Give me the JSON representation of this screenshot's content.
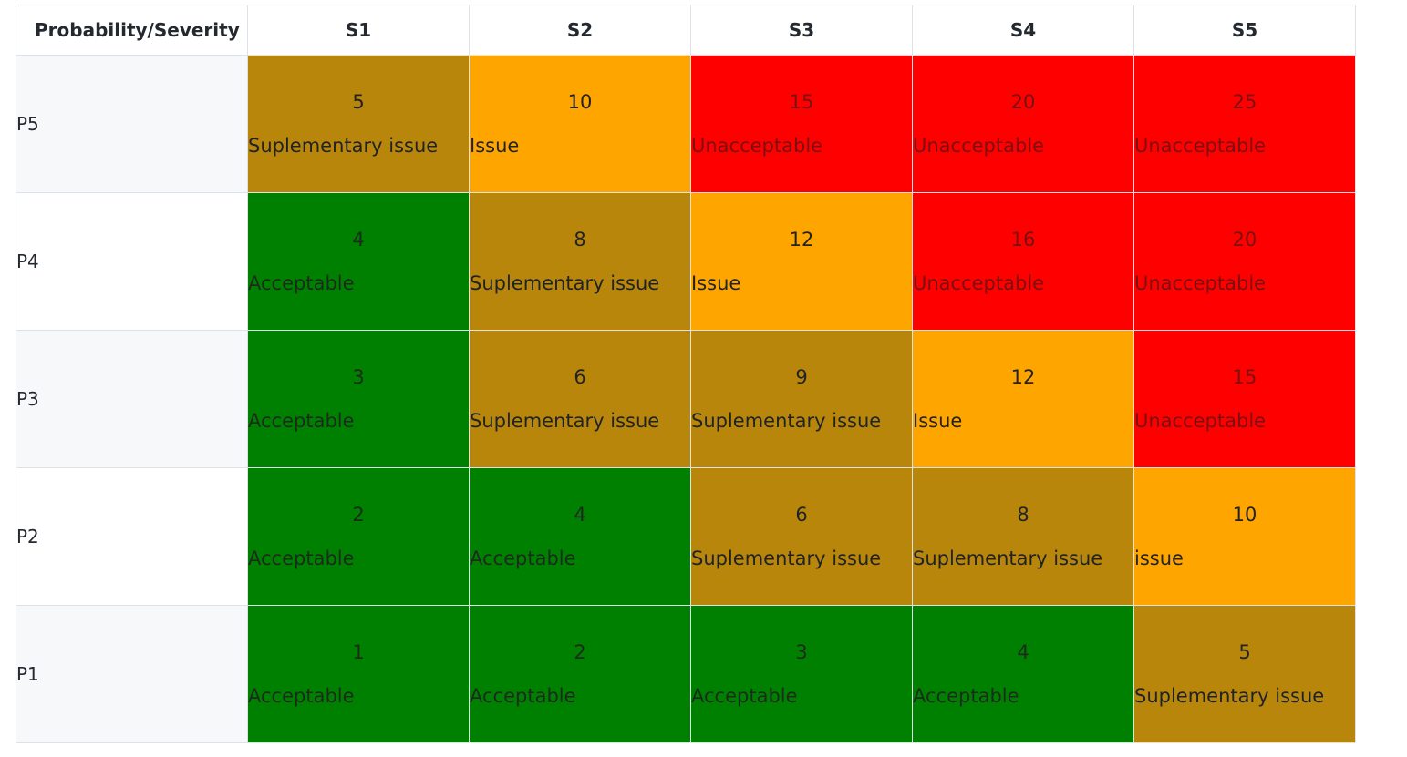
{
  "header": {
    "corner": "Probability/Severity",
    "columns": [
      "S1",
      "S2",
      "S3",
      "S4",
      "S5"
    ]
  },
  "rows": [
    {
      "label": "P5",
      "cells": [
        {
          "score": "5",
          "text": "Suplementary issue",
          "level": "suplementary"
        },
        {
          "score": "10",
          "text": "Issue",
          "level": "issue"
        },
        {
          "score": "15",
          "text": "Unacceptable",
          "level": "unacceptable"
        },
        {
          "score": "20",
          "text": "Unacceptable",
          "level": "unacceptable"
        },
        {
          "score": "25",
          "text": "Unacceptable",
          "level": "unacceptable"
        }
      ]
    },
    {
      "label": "P4",
      "cells": [
        {
          "score": "4",
          "text": "Acceptable",
          "level": "acceptable"
        },
        {
          "score": "8",
          "text": "Suplementary issue",
          "level": "suplementary"
        },
        {
          "score": "12",
          "text": "Issue",
          "level": "issue"
        },
        {
          "score": "16",
          "text": "Unacceptable",
          "level": "unacceptable"
        },
        {
          "score": "20",
          "text": "Unacceptable",
          "level": "unacceptable"
        }
      ]
    },
    {
      "label": "P3",
      "cells": [
        {
          "score": "3",
          "text": "Acceptable",
          "level": "acceptable"
        },
        {
          "score": "6",
          "text": "Suplementary issue",
          "level": "suplementary"
        },
        {
          "score": "9",
          "text": "Suplementary issue",
          "level": "suplementary"
        },
        {
          "score": "12",
          "text": "Issue",
          "level": "issue"
        },
        {
          "score": "15",
          "text": "Unacceptable",
          "level": "unacceptable"
        }
      ]
    },
    {
      "label": "P2",
      "cells": [
        {
          "score": "2",
          "text": "Acceptable",
          "level": "acceptable"
        },
        {
          "score": "4",
          "text": "Acceptable",
          "level": "acceptable"
        },
        {
          "score": "6",
          "text": "Suplementary issue",
          "level": "suplementary"
        },
        {
          "score": "8",
          "text": "Suplementary issue",
          "level": "suplementary"
        },
        {
          "score": "10",
          "text": "issue",
          "level": "issue"
        }
      ]
    },
    {
      "label": "P1",
      "cells": [
        {
          "score": "1",
          "text": "Acceptable",
          "level": "acceptable"
        },
        {
          "score": "2",
          "text": "Acceptable",
          "level": "acceptable"
        },
        {
          "score": "3",
          "text": "Acceptable",
          "level": "acceptable"
        },
        {
          "score": "4",
          "text": "Acceptable",
          "level": "acceptable"
        },
        {
          "score": "5",
          "text": "Suplementary issue",
          "level": "suplementary"
        }
      ]
    }
  ],
  "colors": {
    "acceptable": "#008000",
    "suplementary": "#b8860b",
    "issue": "#ffa500",
    "unacceptable": "#ff0000"
  }
}
